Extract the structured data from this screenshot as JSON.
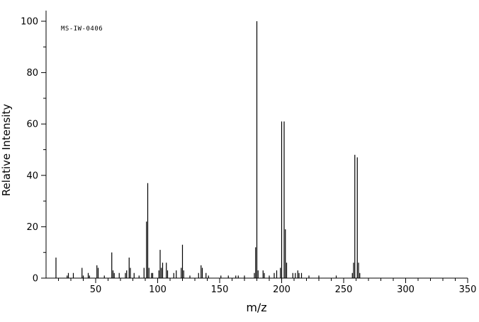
{
  "chart_data": {
    "type": "bar",
    "title": "",
    "xlabel": "m/z",
    "ylabel": "Relative Intensity",
    "annotation": "MS-IW-0406",
    "xlim": [
      10,
      350
    ],
    "ylim": [
      0,
      100
    ],
    "x_major_ticks": [
      50,
      100,
      150,
      200,
      250,
      300,
      350
    ],
    "x_minor_step": 10,
    "y_major_ticks": [
      0,
      20,
      40,
      60,
      80,
      100
    ],
    "y_minor_step": 10,
    "grid": false,
    "legend": false,
    "line_color": "#000000",
    "background_color": "#ffffff",
    "peaks": [
      [
        18,
        8
      ],
      [
        27,
        1
      ],
      [
        28,
        2
      ],
      [
        32,
        2
      ],
      [
        39,
        4
      ],
      [
        40,
        1
      ],
      [
        44,
        2
      ],
      [
        45,
        1
      ],
      [
        51,
        5
      ],
      [
        52,
        4
      ],
      [
        57,
        1
      ],
      [
        63,
        10
      ],
      [
        64,
        3
      ],
      [
        65,
        2
      ],
      [
        69,
        2
      ],
      [
        74,
        2
      ],
      [
        75,
        3
      ],
      [
        77,
        8
      ],
      [
        78,
        4
      ],
      [
        81,
        2
      ],
      [
        85,
        1
      ],
      [
        89,
        4
      ],
      [
        91,
        22
      ],
      [
        92,
        37
      ],
      [
        93,
        4
      ],
      [
        95,
        2
      ],
      [
        96,
        2
      ],
      [
        101,
        3
      ],
      [
        102,
        11
      ],
      [
        103,
        4
      ],
      [
        104,
        6
      ],
      [
        107,
        6
      ],
      [
        108,
        3
      ],
      [
        113,
        2
      ],
      [
        115,
        3
      ],
      [
        119,
        4
      ],
      [
        120,
        13
      ],
      [
        121,
        3
      ],
      [
        126,
        1
      ],
      [
        133,
        2
      ],
      [
        135,
        5
      ],
      [
        136,
        4
      ],
      [
        139,
        2
      ],
      [
        141,
        1
      ],
      [
        151,
        1
      ],
      [
        157,
        1
      ],
      [
        163,
        1
      ],
      [
        165,
        1
      ],
      [
        170,
        1
      ],
      [
        178,
        2
      ],
      [
        179,
        12
      ],
      [
        180,
        100
      ],
      [
        181,
        3
      ],
      [
        185,
        3
      ],
      [
        186,
        2
      ],
      [
        190,
        1
      ],
      [
        194,
        2
      ],
      [
        196,
        3
      ],
      [
        199,
        4
      ],
      [
        200,
        61
      ],
      [
        202,
        61
      ],
      [
        203,
        19
      ],
      [
        204,
        6
      ],
      [
        209,
        2
      ],
      [
        211,
        2
      ],
      [
        213,
        3
      ],
      [
        214,
        2
      ],
      [
        216,
        2
      ],
      [
        222,
        1
      ],
      [
        230,
        1
      ],
      [
        244,
        1
      ],
      [
        257,
        2
      ],
      [
        258,
        6
      ],
      [
        259,
        48
      ],
      [
        261,
        47
      ],
      [
        262,
        6
      ],
      [
        263,
        2
      ]
    ]
  }
}
